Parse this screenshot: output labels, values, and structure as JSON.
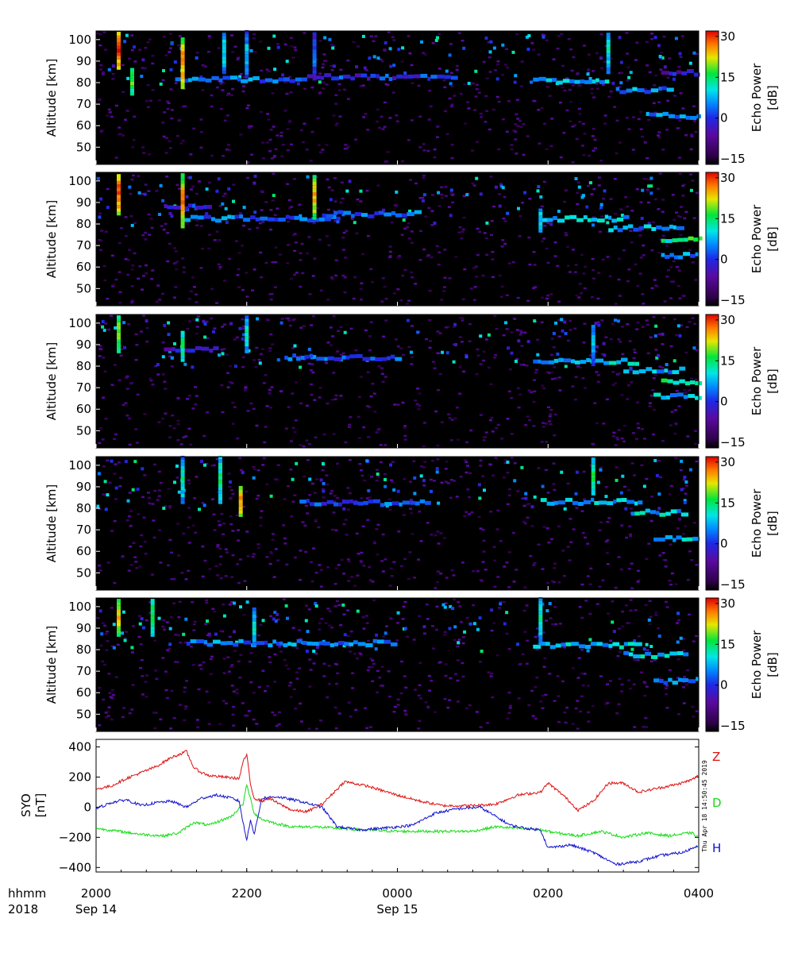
{
  "chart_data": [
    {
      "type": "heatmap",
      "panel": 1,
      "ylabel": "Altitude [km]",
      "yticks": [
        50,
        60,
        70,
        80,
        90,
        100
      ],
      "ylim": [
        42,
        104
      ],
      "colorbar": {
        "label": "Echo Power [dB]",
        "ticks": [
          -15,
          0,
          15,
          30
        ],
        "range": [
          -17,
          32
        ]
      },
      "echo_layers": [
        {
          "start_hr": 21.05,
          "end_hr": 22.8,
          "alt_km": 81.5,
          "db": 4
        },
        {
          "start_hr": 22.8,
          "end_hr": 24.8,
          "alt_km": 82.5,
          "db": 0
        },
        {
          "start_hr": 25.8,
          "end_hr": 26.8,
          "alt_km": 81.0,
          "db": 8
        },
        {
          "start_hr": 26.9,
          "end_hr": 27.6,
          "alt_km": 76.5,
          "db": 5
        },
        {
          "start_hr": 27.3,
          "end_hr": 28.0,
          "alt_km": 64.5,
          "db": 5
        },
        {
          "start_hr": 27.5,
          "end_hr": 28.0,
          "alt_km": 84.5,
          "db": -3
        }
      ],
      "echo_columns": [
        {
          "time_hr": 20.3,
          "alt_min": 86,
          "alt_max": 103,
          "db": 30
        },
        {
          "time_hr": 20.48,
          "alt_min": 74,
          "alt_max": 86,
          "db": 18
        },
        {
          "time_hr": 21.15,
          "alt_min": 77,
          "alt_max": 100,
          "db": 28
        },
        {
          "time_hr": 21.7,
          "alt_min": 84,
          "alt_max": 103,
          "db": 12
        },
        {
          "time_hr": 22.0,
          "alt_min": 82,
          "alt_max": 103,
          "db": 10
        },
        {
          "time_hr": 22.9,
          "alt_min": 81,
          "alt_max": 103,
          "db": 6
        },
        {
          "time_hr": 26.8,
          "alt_min": 84,
          "alt_max": 103,
          "db": 12
        }
      ]
    },
    {
      "type": "heatmap",
      "panel": 2,
      "ylabel": "Altitude [km]",
      "yticks": [
        50,
        60,
        70,
        80,
        90,
        100
      ],
      "ylim": [
        42,
        104
      ],
      "colorbar": {
        "label": "Echo Power [dB]",
        "ticks": [
          -15,
          0,
          15,
          30
        ],
        "range": [
          -17,
          32
        ]
      },
      "echo_layers": [
        {
          "start_hr": 20.9,
          "end_hr": 21.5,
          "alt_km": 88.0,
          "db": 0
        },
        {
          "start_hr": 21.15,
          "end_hr": 23.2,
          "alt_km": 82.5,
          "db": 4
        },
        {
          "start_hr": 23.0,
          "end_hr": 24.3,
          "alt_km": 84.5,
          "db": 3
        },
        {
          "start_hr": 25.9,
          "end_hr": 27.0,
          "alt_km": 82.5,
          "db": 8
        },
        {
          "start_hr": 26.8,
          "end_hr": 27.8,
          "alt_km": 78.0,
          "db": 6
        },
        {
          "start_hr": 27.5,
          "end_hr": 28.0,
          "alt_km": 73.0,
          "db": 14
        },
        {
          "start_hr": 27.5,
          "end_hr": 28.0,
          "alt_km": 65.5,
          "db": 6
        }
      ],
      "echo_columns": [
        {
          "time_hr": 20.3,
          "alt_min": 84,
          "alt_max": 103,
          "db": 30
        },
        {
          "time_hr": 21.15,
          "alt_min": 78,
          "alt_max": 102,
          "db": 28
        },
        {
          "time_hr": 22.9,
          "alt_min": 82,
          "alt_max": 102,
          "db": 25
        },
        {
          "time_hr": 25.9,
          "alt_min": 76,
          "alt_max": 87,
          "db": 10
        }
      ]
    },
    {
      "type": "heatmap",
      "panel": 3,
      "ylabel": "Altitude [km]",
      "yticks": [
        50,
        60,
        70,
        80,
        90,
        100
      ],
      "ylim": [
        42,
        104
      ],
      "colorbar": {
        "label": "Echo Power [dB]",
        "ticks": [
          -15,
          0,
          15,
          30
        ],
        "range": [
          -17,
          32
        ]
      },
      "echo_layers": [
        {
          "start_hr": 20.9,
          "end_hr": 21.6,
          "alt_km": 87.5,
          "db": -3
        },
        {
          "start_hr": 22.5,
          "end_hr": 24.0,
          "alt_km": 84.0,
          "db": 2
        },
        {
          "start_hr": 25.8,
          "end_hr": 27.2,
          "alt_km": 82.0,
          "db": 8
        },
        {
          "start_hr": 27.0,
          "end_hr": 27.8,
          "alt_km": 78.0,
          "db": 6
        },
        {
          "start_hr": 27.5,
          "end_hr": 28.0,
          "alt_km": 72.5,
          "db": 12
        },
        {
          "start_hr": 27.4,
          "end_hr": 28.0,
          "alt_km": 66.0,
          "db": 8
        }
      ],
      "echo_columns": [
        {
          "time_hr": 20.3,
          "alt_min": 86,
          "alt_max": 103,
          "db": 20
        },
        {
          "time_hr": 21.15,
          "alt_min": 82,
          "alt_max": 96,
          "db": 16
        },
        {
          "time_hr": 22.0,
          "alt_min": 86,
          "alt_max": 103,
          "db": 12
        },
        {
          "time_hr": 26.6,
          "alt_min": 80,
          "alt_max": 99,
          "db": 10
        }
      ]
    },
    {
      "type": "heatmap",
      "panel": 4,
      "ylabel": "Altitude [km]",
      "yticks": [
        50,
        60,
        70,
        80,
        90,
        100
      ],
      "ylim": [
        42,
        104
      ],
      "colorbar": {
        "label": "Echo Power [dB]",
        "ticks": [
          -15,
          0,
          15,
          30
        ],
        "range": [
          -17,
          32
        ]
      },
      "echo_layers": [
        {
          "start_hr": 22.7,
          "end_hr": 24.4,
          "alt_km": 82.5,
          "db": 2
        },
        {
          "start_hr": 25.9,
          "end_hr": 27.2,
          "alt_km": 83.0,
          "db": 8
        },
        {
          "start_hr": 27.1,
          "end_hr": 27.8,
          "alt_km": 78.0,
          "db": 8
        },
        {
          "start_hr": 27.4,
          "end_hr": 28.0,
          "alt_km": 66.0,
          "db": 8
        }
      ],
      "echo_columns": [
        {
          "time_hr": 21.92,
          "alt_min": 76,
          "alt_max": 90,
          "db": 26
        },
        {
          "time_hr": 21.15,
          "alt_min": 82,
          "alt_max": 103,
          "db": 14
        },
        {
          "time_hr": 21.65,
          "alt_min": 82,
          "alt_max": 103,
          "db": 16
        },
        {
          "time_hr": 26.6,
          "alt_min": 86,
          "alt_max": 103,
          "db": 16
        }
      ]
    },
    {
      "type": "heatmap",
      "panel": 5,
      "ylabel": "Altitude [km]",
      "yticks": [
        50,
        60,
        70,
        80,
        90,
        100
      ],
      "ylim": [
        42,
        104
      ],
      "colorbar": {
        "label": "Echo Power [dB]",
        "ticks": [
          -15,
          0,
          15,
          30
        ],
        "range": [
          -17,
          32
        ]
      },
      "echo_layers": [
        {
          "start_hr": 21.2,
          "end_hr": 24.0,
          "alt_km": 83.0,
          "db": 4
        },
        {
          "start_hr": 25.8,
          "end_hr": 27.2,
          "alt_km": 82.0,
          "db": 8
        },
        {
          "start_hr": 27.0,
          "end_hr": 27.8,
          "alt_km": 77.5,
          "db": 8
        },
        {
          "start_hr": 27.4,
          "end_hr": 28.0,
          "alt_km": 65.5,
          "db": 6
        }
      ],
      "echo_columns": [
        {
          "time_hr": 20.3,
          "alt_min": 86,
          "alt_max": 103,
          "db": 24
        },
        {
          "time_hr": 20.75,
          "alt_min": 86,
          "alt_max": 102,
          "db": 18
        },
        {
          "time_hr": 22.1,
          "alt_min": 82,
          "alt_max": 98,
          "db": 12
        },
        {
          "time_hr": 25.9,
          "alt_min": 82,
          "alt_max": 103,
          "db": 14
        }
      ]
    },
    {
      "type": "line",
      "panel": 6,
      "ylabel": "SYO [nT]",
      "ylim": [
        -430,
        450
      ],
      "yticks": [
        -400,
        -200,
        0,
        200,
        400
      ],
      "series": [
        {
          "name": "Z",
          "color": "#dd1111",
          "x_hr": [
            20.0,
            20.2,
            20.4,
            20.6,
            20.8,
            21.0,
            21.2,
            21.3,
            21.4,
            21.5,
            21.7,
            21.9,
            21.95,
            22.0,
            22.05,
            22.1,
            22.2,
            22.3,
            22.4,
            22.6,
            22.8,
            23.0,
            23.3,
            23.6,
            24.0,
            24.3,
            24.6,
            25.0,
            25.3,
            25.6,
            25.9,
            26.0,
            26.2,
            26.4,
            26.6,
            26.8,
            27.0,
            27.2,
            27.5,
            27.7,
            27.9,
            28.0
          ],
          "values": [
            120,
            140,
            190,
            230,
            270,
            330,
            370,
            260,
            230,
            210,
            200,
            190,
            300,
            350,
            150,
            60,
            40,
            60,
            30,
            -20,
            -30,
            20,
            170,
            140,
            80,
            40,
            10,
            10,
            20,
            80,
            100,
            160,
            80,
            -20,
            40,
            160,
            160,
            100,
            130,
            150,
            180,
            210
          ]
        },
        {
          "name": "D",
          "color": "#11dd11",
          "x_hr": [
            20.0,
            20.3,
            20.6,
            20.9,
            21.1,
            21.3,
            21.5,
            21.8,
            21.95,
            22.0,
            22.1,
            22.2,
            22.4,
            22.6,
            22.9,
            23.2,
            23.5,
            24.0,
            24.5,
            25.0,
            25.3,
            25.6,
            25.9,
            26.1,
            26.4,
            26.7,
            27.0,
            27.3,
            27.6,
            27.9,
            28.0
          ],
          "values": [
            -140,
            -160,
            -180,
            -190,
            -170,
            -100,
            -120,
            -60,
            20,
            150,
            -40,
            -80,
            -110,
            -130,
            -130,
            -140,
            -150,
            -160,
            -160,
            -160,
            -130,
            -140,
            -150,
            -170,
            -190,
            -160,
            -200,
            -170,
            -190,
            -170,
            -200
          ]
        },
        {
          "name": "H",
          "color": "#1111cc",
          "x_hr": [
            20.0,
            20.2,
            20.4,
            20.6,
            20.8,
            21.0,
            21.2,
            21.4,
            21.6,
            21.8,
            21.9,
            21.95,
            22.0,
            22.05,
            22.1,
            22.2,
            22.4,
            22.7,
            23.0,
            23.2,
            23.5,
            23.8,
            24.2,
            24.5,
            24.8,
            25.1,
            25.3,
            25.5,
            25.7,
            25.9,
            26.0,
            26.3,
            26.6,
            26.9,
            27.2,
            27.5,
            27.8,
            28.0
          ],
          "values": [
            -10,
            30,
            50,
            10,
            30,
            40,
            0,
            60,
            80,
            60,
            40,
            -100,
            -220,
            -80,
            -180,
            60,
            70,
            40,
            0,
            -130,
            -150,
            -140,
            -120,
            -40,
            -10,
            0,
            -60,
            -120,
            -140,
            -150,
            -270,
            -250,
            -300,
            -380,
            -360,
            -320,
            -300,
            -250
          ]
        }
      ]
    }
  ],
  "time_axis": {
    "row1_label": "hhmm",
    "row2_label": "2018",
    "ticks": [
      {
        "time_hr": 20,
        "label": "2000"
      },
      {
        "time_hr": 22,
        "label": "2200"
      },
      {
        "time_hr": 24,
        "label": "0000"
      },
      {
        "time_hr": 26,
        "label": "0200"
      },
      {
        "time_hr": 28,
        "label": "0400"
      }
    ],
    "date_labels": [
      {
        "time_hr": 20,
        "label": "Sep 14"
      },
      {
        "time_hr": 24,
        "label": "Sep 15"
      }
    ],
    "xlim": [
      20,
      28
    ]
  },
  "mag_labels": {
    "ylabel_line1": "SYO",
    "ylabel_line2": "[nT]"
  },
  "timestamp": "Thu Apr 18 14:50:45 2019",
  "colors": {
    "background": "#ffffff",
    "plot_background": "#000000"
  }
}
